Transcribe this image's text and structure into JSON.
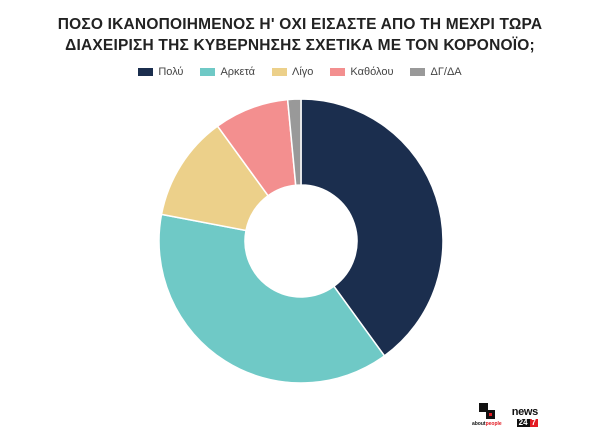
{
  "chart_data": {
    "type": "pie",
    "donut": true,
    "title_lines": [
      "ΠΟΣΟ ΙΚΑΝΟΠΟΙΗΜΕΝΟΣ Η' ΟΧΙ ΕΙΣΑΣΤΕ ΑΠΟ ΤΗ ΜΕΧΡΙ ΤΩΡΑ",
      "ΔΙΑΧΕΙΡΙΣΗ ΤΗΣ ΚΥΒΕΡΝΗΣΗΣ ΣΧΕΤΙΚΑ ΜΕ ΤΟΝ ΚΟΡΟΝΟΪΟ;"
    ],
    "legend_position": "top",
    "categories": [
      "Πολύ",
      "Αρκετά",
      "Λίγο",
      "Καθόλου",
      "ΔΓ/ΔΑ"
    ],
    "values": [
      40,
      38,
      12,
      8.5,
      1.5
    ],
    "colors": [
      "#1b2e4e",
      "#6fc9c6",
      "#ecd08a",
      "#f38f8f",
      "#999999"
    ]
  },
  "branding": {
    "aboutpeople_a": "about",
    "aboutpeople_b": "people",
    "news_word": "news",
    "news_num_1": "24",
    "news_num_2": "7"
  }
}
